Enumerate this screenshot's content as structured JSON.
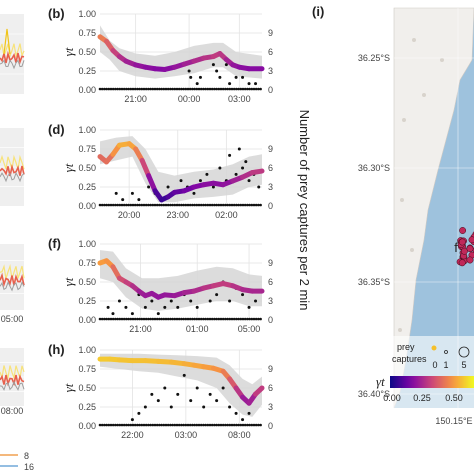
{
  "chart_data": [
    {
      "panel": "(b)",
      "type": "line",
      "ylabel": "γt",
      "ylim": [
        0,
        1
      ],
      "yticks": [
        "0.00",
        "0.25",
        "0.50",
        "0.75",
        "1.00"
      ],
      "y2ticks": [
        "0",
        "3",
        "6",
        "9"
      ],
      "y2lim": [
        0,
        12
      ],
      "xticks": [
        {
          "pos": 0.22,
          "label": "21:00"
        },
        {
          "pos": 0.55,
          "label": "00:00"
        },
        {
          "pos": 0.86,
          "label": "03:00"
        }
      ],
      "gamma": [
        [
          0.0,
          0.7
        ],
        [
          0.04,
          0.64
        ],
        [
          0.08,
          0.52
        ],
        [
          0.12,
          0.44
        ],
        [
          0.16,
          0.38
        ],
        [
          0.22,
          0.33
        ],
        [
          0.28,
          0.3
        ],
        [
          0.34,
          0.28
        ],
        [
          0.4,
          0.27
        ],
        [
          0.46,
          0.3
        ],
        [
          0.52,
          0.34
        ],
        [
          0.58,
          0.38
        ],
        [
          0.64,
          0.42
        ],
        [
          0.7,
          0.44
        ],
        [
          0.74,
          0.48
        ],
        [
          0.78,
          0.4
        ],
        [
          0.82,
          0.33
        ],
        [
          0.86,
          0.3
        ],
        [
          0.92,
          0.28
        ],
        [
          1.0,
          0.28
        ]
      ],
      "band": [
        [
          0.0,
          0.85,
          0.5
        ],
        [
          0.06,
          0.65,
          0.4
        ],
        [
          0.12,
          0.55,
          0.25
        ],
        [
          0.22,
          0.48,
          0.18
        ],
        [
          0.34,
          0.45,
          0.15
        ],
        [
          0.46,
          0.5,
          0.18
        ],
        [
          0.58,
          0.58,
          0.22
        ],
        [
          0.7,
          0.62,
          0.3
        ],
        [
          0.76,
          0.62,
          0.3
        ],
        [
          0.84,
          0.5,
          0.18
        ],
        [
          1.0,
          0.45,
          0.15
        ]
      ],
      "captures": [
        [
          0.55,
          3
        ],
        [
          0.56,
          2
        ],
        [
          0.6,
          1
        ],
        [
          0.62,
          2
        ],
        [
          0.66,
          5
        ],
        [
          0.7,
          4
        ],
        [
          0.72,
          3
        ],
        [
          0.74,
          2
        ],
        [
          0.78,
          4
        ],
        [
          0.8,
          1
        ],
        [
          0.84,
          2
        ],
        [
          0.88,
          2
        ],
        [
          0.92,
          1
        ],
        [
          0.96,
          1
        ]
      ]
    },
    {
      "panel": "(d)",
      "type": "line",
      "ylabel": "γt",
      "ylim": [
        0,
        1
      ],
      "yticks": [
        "0.00",
        "0.25",
        "0.50",
        "0.75",
        "1.00"
      ],
      "y2ticks": [
        "0",
        "3",
        "6",
        "9"
      ],
      "y2lim": [
        0,
        12
      ],
      "xticks": [
        {
          "pos": 0.18,
          "label": "20:00"
        },
        {
          "pos": 0.48,
          "label": "23:00"
        },
        {
          "pos": 0.78,
          "label": "02:00"
        }
      ],
      "gamma": [
        [
          0.0,
          0.65
        ],
        [
          0.04,
          0.58
        ],
        [
          0.08,
          0.68
        ],
        [
          0.12,
          0.8
        ],
        [
          0.18,
          0.82
        ],
        [
          0.22,
          0.75
        ],
        [
          0.26,
          0.6
        ],
        [
          0.3,
          0.4
        ],
        [
          0.34,
          0.2
        ],
        [
          0.38,
          0.08
        ],
        [
          0.42,
          0.12
        ],
        [
          0.46,
          0.18
        ],
        [
          0.52,
          0.2
        ],
        [
          0.58,
          0.25
        ],
        [
          0.64,
          0.28
        ],
        [
          0.7,
          0.3
        ],
        [
          0.76,
          0.28
        ],
        [
          0.82,
          0.33
        ],
        [
          0.88,
          0.38
        ],
        [
          0.94,
          0.44
        ],
        [
          1.0,
          0.46
        ]
      ],
      "band": [
        [
          0.0,
          0.85,
          0.55
        ],
        [
          0.1,
          0.9,
          0.6
        ],
        [
          0.2,
          0.92,
          0.65
        ],
        [
          0.28,
          0.75,
          0.3
        ],
        [
          0.36,
          0.45,
          0.05
        ],
        [
          0.46,
          0.4,
          0.05
        ],
        [
          0.58,
          0.45,
          0.1
        ],
        [
          0.7,
          0.48,
          0.12
        ],
        [
          0.82,
          0.55,
          0.15
        ],
        [
          0.92,
          0.65,
          0.25
        ],
        [
          1.0,
          0.68,
          0.28
        ]
      ],
      "captures": [
        [
          0.1,
          2
        ],
        [
          0.14,
          1
        ],
        [
          0.2,
          2
        ],
        [
          0.24,
          1
        ],
        [
          0.3,
          3
        ],
        [
          0.34,
          2
        ],
        [
          0.38,
          1
        ],
        [
          0.42,
          3
        ],
        [
          0.46,
          2
        ],
        [
          0.5,
          4
        ],
        [
          0.54,
          3
        ],
        [
          0.58,
          2
        ],
        [
          0.62,
          4
        ],
        [
          0.66,
          5
        ],
        [
          0.7,
          3
        ],
        [
          0.74,
          6
        ],
        [
          0.78,
          4
        ],
        [
          0.8,
          8
        ],
        [
          0.84,
          5
        ],
        [
          0.86,
          9
        ],
        [
          0.88,
          6
        ],
        [
          0.9,
          7
        ],
        [
          0.92,
          4
        ],
        [
          0.95,
          5
        ],
        [
          0.98,
          3
        ]
      ]
    },
    {
      "panel": "(f)",
      "type": "line",
      "ylabel": "γt",
      "ylim": [
        0,
        1
      ],
      "yticks": [
        "0.00",
        "0.25",
        "0.50",
        "0.75",
        "1.00"
      ],
      "y2ticks": [
        "0",
        "3",
        "6",
        "9"
      ],
      "y2lim": [
        0,
        12
      ],
      "xticks": [
        {
          "pos": 0.25,
          "label": "21:00"
        },
        {
          "pos": 0.6,
          "label": "01:00"
        },
        {
          "pos": 0.92,
          "label": "05:00"
        }
      ],
      "gamma": [
        [
          0.0,
          0.75
        ],
        [
          0.04,
          0.78
        ],
        [
          0.08,
          0.7
        ],
        [
          0.12,
          0.55
        ],
        [
          0.16,
          0.5
        ],
        [
          0.2,
          0.45
        ],
        [
          0.24,
          0.38
        ],
        [
          0.28,
          0.32
        ],
        [
          0.32,
          0.35
        ],
        [
          0.36,
          0.3
        ],
        [
          0.4,
          0.33
        ],
        [
          0.46,
          0.32
        ],
        [
          0.52,
          0.36
        ],
        [
          0.58,
          0.38
        ],
        [
          0.64,
          0.42
        ],
        [
          0.7,
          0.45
        ],
        [
          0.76,
          0.48
        ],
        [
          0.82,
          0.45
        ],
        [
          0.88,
          0.4
        ],
        [
          0.94,
          0.38
        ],
        [
          1.0,
          0.38
        ]
      ],
      "band": [
        [
          0.0,
          0.92,
          0.55
        ],
        [
          0.08,
          0.9,
          0.5
        ],
        [
          0.16,
          0.68,
          0.3
        ],
        [
          0.26,
          0.55,
          0.15
        ],
        [
          0.36,
          0.55,
          0.12
        ],
        [
          0.48,
          0.58,
          0.15
        ],
        [
          0.6,
          0.65,
          0.2
        ],
        [
          0.72,
          0.7,
          0.25
        ],
        [
          0.82,
          0.68,
          0.25
        ],
        [
          0.92,
          0.6,
          0.18
        ],
        [
          1.0,
          0.58,
          0.18
        ]
      ],
      "captures": [
        [
          0.05,
          2
        ],
        [
          0.08,
          1
        ],
        [
          0.12,
          3
        ],
        [
          0.16,
          2
        ],
        [
          0.2,
          1
        ],
        [
          0.24,
          4
        ],
        [
          0.28,
          2
        ],
        [
          0.32,
          3
        ],
        [
          0.36,
          1
        ],
        [
          0.4,
          2
        ],
        [
          0.44,
          3
        ],
        [
          0.48,
          2
        ],
        [
          0.52,
          4
        ],
        [
          0.56,
          3
        ],
        [
          0.6,
          2
        ],
        [
          0.64,
          5
        ],
        [
          0.68,
          3
        ],
        [
          0.72,
          4
        ],
        [
          0.76,
          6
        ],
        [
          0.8,
          3
        ],
        [
          0.84,
          5
        ],
        [
          0.88,
          4
        ],
        [
          0.92,
          2
        ],
        [
          0.96,
          3
        ]
      ]
    },
    {
      "panel": "(h)",
      "type": "line",
      "ylabel": "γt",
      "ylim": [
        0,
        1
      ],
      "yticks": [
        "0.00",
        "0.25",
        "0.50",
        "0.75",
        "1.00"
      ],
      "y2ticks": [
        "0",
        "3",
        "6",
        "9"
      ],
      "y2lim": [
        0,
        12
      ],
      "xticks": [
        {
          "pos": 0.2,
          "label": "22:00"
        },
        {
          "pos": 0.53,
          "label": "03:00"
        },
        {
          "pos": 0.86,
          "label": "08:00"
        }
      ],
      "gamma": [
        [
          0.0,
          0.88
        ],
        [
          0.06,
          0.88
        ],
        [
          0.12,
          0.87
        ],
        [
          0.2,
          0.86
        ],
        [
          0.28,
          0.86
        ],
        [
          0.36,
          0.85
        ],
        [
          0.44,
          0.84
        ],
        [
          0.52,
          0.82
        ],
        [
          0.58,
          0.8
        ],
        [
          0.64,
          0.78
        ],
        [
          0.7,
          0.76
        ],
        [
          0.76,
          0.72
        ],
        [
          0.8,
          0.62
        ],
        [
          0.84,
          0.5
        ],
        [
          0.88,
          0.38
        ],
        [
          0.92,
          0.3
        ],
        [
          0.96,
          0.42
        ],
        [
          1.0,
          0.5
        ]
      ],
      "band": [
        [
          0.0,
          0.95,
          0.78
        ],
        [
          0.12,
          0.95,
          0.75
        ],
        [
          0.24,
          0.95,
          0.72
        ],
        [
          0.36,
          0.94,
          0.7
        ],
        [
          0.48,
          0.93,
          0.65
        ],
        [
          0.6,
          0.92,
          0.6
        ],
        [
          0.72,
          0.9,
          0.5
        ],
        [
          0.8,
          0.8,
          0.3
        ],
        [
          0.88,
          0.62,
          0.15
        ],
        [
          0.94,
          0.55,
          0.12
        ],
        [
          1.0,
          0.65,
          0.28
        ]
      ],
      "captures": [
        [
          0.2,
          1
        ],
        [
          0.24,
          2
        ],
        [
          0.28,
          3
        ],
        [
          0.32,
          5
        ],
        [
          0.36,
          4
        ],
        [
          0.4,
          6
        ],
        [
          0.44,
          3
        ],
        [
          0.48,
          5
        ],
        [
          0.52,
          8
        ],
        [
          0.56,
          4
        ],
        [
          0.6,
          6
        ],
        [
          0.64,
          3
        ],
        [
          0.68,
          5
        ],
        [
          0.72,
          4
        ],
        [
          0.76,
          6
        ],
        [
          0.8,
          3
        ],
        [
          0.84,
          2
        ],
        [
          0.88,
          1
        ],
        [
          0.92,
          2
        ]
      ]
    }
  ],
  "right_axis_label": "Number of prey captures per 2 min",
  "left_strips": {
    "colors": [
      "#f0c419",
      "#e8604c",
      "#9e9e9e",
      "#f7e27a",
      "#70a9d8"
    ],
    "xticks": [
      "05:00",
      "08:00"
    ],
    "legend_values": [
      "8",
      "16"
    ]
  },
  "map": {
    "panel": "(i)",
    "lat_ticks": [
      "36.25°S",
      "36.30°S",
      "36.35°S",
      "36.40°S"
    ],
    "lon_tick": "150.15°E",
    "point_label": "f",
    "legend": {
      "title": "prey\ncaptures",
      "size_values": [
        "0",
        "1",
        "5"
      ],
      "gamma_symbol": "γt",
      "colorbar_ticks": [
        "0.00",
        "0.25",
        "0.50"
      ]
    },
    "colors": {
      "land": "#f1efec",
      "sea": "#9ec2dd",
      "points": "#c0285a"
    }
  },
  "colors": {
    "band": "#d6d6d6",
    "captures": "#111111"
  }
}
